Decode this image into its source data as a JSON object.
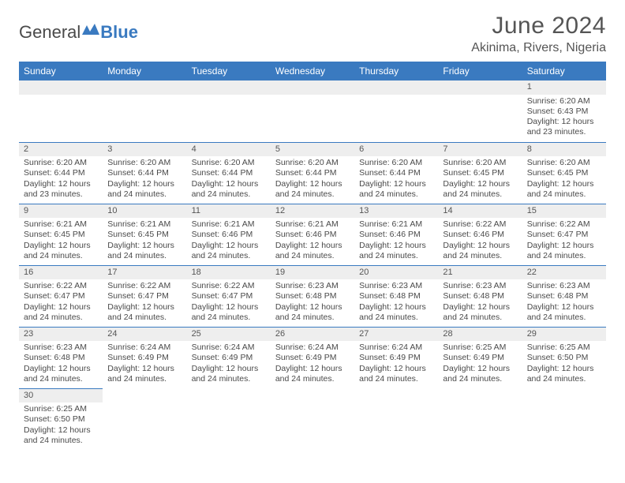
{
  "logo": {
    "text1": "General",
    "text2": "Blue"
  },
  "title": "June 2024",
  "location": "Akinima, Rivers, Nigeria",
  "dayHeaders": [
    "Sunday",
    "Monday",
    "Tuesday",
    "Wednesday",
    "Thursday",
    "Friday",
    "Saturday"
  ],
  "colors": {
    "headerBg": "#3a7ac0",
    "headerText": "#ffffff",
    "cellBorder": "#3a7ac0",
    "dayStripBg": "#eeeeee",
    "bodyText": "#4a4a4a"
  },
  "weeks": [
    [
      null,
      null,
      null,
      null,
      null,
      null,
      {
        "n": "1",
        "sr": "Sunrise: 6:20 AM",
        "ss": "Sunset: 6:43 PM",
        "d1": "Daylight: 12 hours",
        "d2": "and 23 minutes."
      }
    ],
    [
      {
        "n": "2",
        "sr": "Sunrise: 6:20 AM",
        "ss": "Sunset: 6:44 PM",
        "d1": "Daylight: 12 hours",
        "d2": "and 23 minutes."
      },
      {
        "n": "3",
        "sr": "Sunrise: 6:20 AM",
        "ss": "Sunset: 6:44 PM",
        "d1": "Daylight: 12 hours",
        "d2": "and 24 minutes."
      },
      {
        "n": "4",
        "sr": "Sunrise: 6:20 AM",
        "ss": "Sunset: 6:44 PM",
        "d1": "Daylight: 12 hours",
        "d2": "and 24 minutes."
      },
      {
        "n": "5",
        "sr": "Sunrise: 6:20 AM",
        "ss": "Sunset: 6:44 PM",
        "d1": "Daylight: 12 hours",
        "d2": "and 24 minutes."
      },
      {
        "n": "6",
        "sr": "Sunrise: 6:20 AM",
        "ss": "Sunset: 6:44 PM",
        "d1": "Daylight: 12 hours",
        "d2": "and 24 minutes."
      },
      {
        "n": "7",
        "sr": "Sunrise: 6:20 AM",
        "ss": "Sunset: 6:45 PM",
        "d1": "Daylight: 12 hours",
        "d2": "and 24 minutes."
      },
      {
        "n": "8",
        "sr": "Sunrise: 6:20 AM",
        "ss": "Sunset: 6:45 PM",
        "d1": "Daylight: 12 hours",
        "d2": "and 24 minutes."
      }
    ],
    [
      {
        "n": "9",
        "sr": "Sunrise: 6:21 AM",
        "ss": "Sunset: 6:45 PM",
        "d1": "Daylight: 12 hours",
        "d2": "and 24 minutes."
      },
      {
        "n": "10",
        "sr": "Sunrise: 6:21 AM",
        "ss": "Sunset: 6:45 PM",
        "d1": "Daylight: 12 hours",
        "d2": "and 24 minutes."
      },
      {
        "n": "11",
        "sr": "Sunrise: 6:21 AM",
        "ss": "Sunset: 6:46 PM",
        "d1": "Daylight: 12 hours",
        "d2": "and 24 minutes."
      },
      {
        "n": "12",
        "sr": "Sunrise: 6:21 AM",
        "ss": "Sunset: 6:46 PM",
        "d1": "Daylight: 12 hours",
        "d2": "and 24 minutes."
      },
      {
        "n": "13",
        "sr": "Sunrise: 6:21 AM",
        "ss": "Sunset: 6:46 PM",
        "d1": "Daylight: 12 hours",
        "d2": "and 24 minutes."
      },
      {
        "n": "14",
        "sr": "Sunrise: 6:22 AM",
        "ss": "Sunset: 6:46 PM",
        "d1": "Daylight: 12 hours",
        "d2": "and 24 minutes."
      },
      {
        "n": "15",
        "sr": "Sunrise: 6:22 AM",
        "ss": "Sunset: 6:47 PM",
        "d1": "Daylight: 12 hours",
        "d2": "and 24 minutes."
      }
    ],
    [
      {
        "n": "16",
        "sr": "Sunrise: 6:22 AM",
        "ss": "Sunset: 6:47 PM",
        "d1": "Daylight: 12 hours",
        "d2": "and 24 minutes."
      },
      {
        "n": "17",
        "sr": "Sunrise: 6:22 AM",
        "ss": "Sunset: 6:47 PM",
        "d1": "Daylight: 12 hours",
        "d2": "and 24 minutes."
      },
      {
        "n": "18",
        "sr": "Sunrise: 6:22 AM",
        "ss": "Sunset: 6:47 PM",
        "d1": "Daylight: 12 hours",
        "d2": "and 24 minutes."
      },
      {
        "n": "19",
        "sr": "Sunrise: 6:23 AM",
        "ss": "Sunset: 6:48 PM",
        "d1": "Daylight: 12 hours",
        "d2": "and 24 minutes."
      },
      {
        "n": "20",
        "sr": "Sunrise: 6:23 AM",
        "ss": "Sunset: 6:48 PM",
        "d1": "Daylight: 12 hours",
        "d2": "and 24 minutes."
      },
      {
        "n": "21",
        "sr": "Sunrise: 6:23 AM",
        "ss": "Sunset: 6:48 PM",
        "d1": "Daylight: 12 hours",
        "d2": "and 24 minutes."
      },
      {
        "n": "22",
        "sr": "Sunrise: 6:23 AM",
        "ss": "Sunset: 6:48 PM",
        "d1": "Daylight: 12 hours",
        "d2": "and 24 minutes."
      }
    ],
    [
      {
        "n": "23",
        "sr": "Sunrise: 6:23 AM",
        "ss": "Sunset: 6:48 PM",
        "d1": "Daylight: 12 hours",
        "d2": "and 24 minutes."
      },
      {
        "n": "24",
        "sr": "Sunrise: 6:24 AM",
        "ss": "Sunset: 6:49 PM",
        "d1": "Daylight: 12 hours",
        "d2": "and 24 minutes."
      },
      {
        "n": "25",
        "sr": "Sunrise: 6:24 AM",
        "ss": "Sunset: 6:49 PM",
        "d1": "Daylight: 12 hours",
        "d2": "and 24 minutes."
      },
      {
        "n": "26",
        "sr": "Sunrise: 6:24 AM",
        "ss": "Sunset: 6:49 PM",
        "d1": "Daylight: 12 hours",
        "d2": "and 24 minutes."
      },
      {
        "n": "27",
        "sr": "Sunrise: 6:24 AM",
        "ss": "Sunset: 6:49 PM",
        "d1": "Daylight: 12 hours",
        "d2": "and 24 minutes."
      },
      {
        "n": "28",
        "sr": "Sunrise: 6:25 AM",
        "ss": "Sunset: 6:49 PM",
        "d1": "Daylight: 12 hours",
        "d2": "and 24 minutes."
      },
      {
        "n": "29",
        "sr": "Sunrise: 6:25 AM",
        "ss": "Sunset: 6:50 PM",
        "d1": "Daylight: 12 hours",
        "d2": "and 24 minutes."
      }
    ],
    [
      {
        "n": "30",
        "sr": "Sunrise: 6:25 AM",
        "ss": "Sunset: 6:50 PM",
        "d1": "Daylight: 12 hours",
        "d2": "and 24 minutes."
      },
      null,
      null,
      null,
      null,
      null,
      null
    ]
  ]
}
